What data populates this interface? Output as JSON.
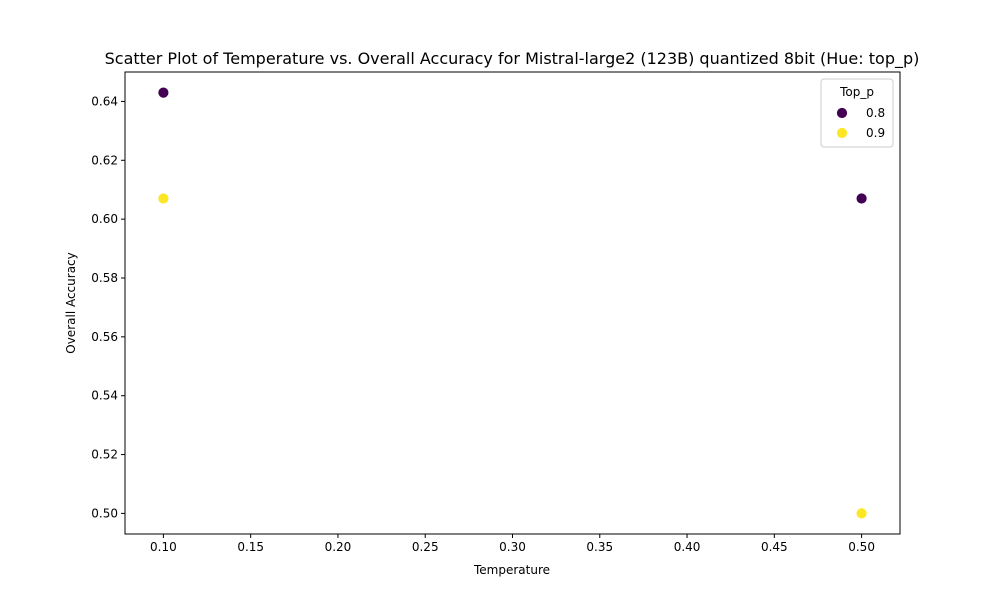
{
  "chart_data": {
    "type": "scatter",
    "title": "Scatter Plot of Temperature vs. Overall Accuracy for Mistral-large2 (123B) quantized 8bit (Hue: top_p)",
    "xlabel": "Temperature",
    "ylabel": "Overall Accuracy",
    "xlim": [
      0.078,
      0.522
    ],
    "ylim": [
      0.493,
      0.65
    ],
    "xticks": [
      "0.10",
      "0.15",
      "0.20",
      "0.25",
      "0.30",
      "0.35",
      "0.40",
      "0.45",
      "0.50"
    ],
    "xtick_values": [
      0.1,
      0.15,
      0.2,
      0.25,
      0.3,
      0.35,
      0.4,
      0.45,
      0.5
    ],
    "yticks": [
      "0.50",
      "0.52",
      "0.54",
      "0.56",
      "0.58",
      "0.60",
      "0.62",
      "0.64"
    ],
    "ytick_values": [
      0.5,
      0.52,
      0.54,
      0.56,
      0.58,
      0.6,
      0.62,
      0.64
    ],
    "grid": false,
    "legend": {
      "title": "Top_p",
      "placement": "top-right"
    },
    "series": [
      {
        "name": "0.8",
        "color": "#440154",
        "points": [
          {
            "x": 0.1,
            "y": 0.643
          },
          {
            "x": 0.5,
            "y": 0.607
          }
        ]
      },
      {
        "name": "0.9",
        "color": "#fde725",
        "points": [
          {
            "x": 0.1,
            "y": 0.607
          },
          {
            "x": 0.5,
            "y": 0.5
          }
        ]
      }
    ]
  }
}
